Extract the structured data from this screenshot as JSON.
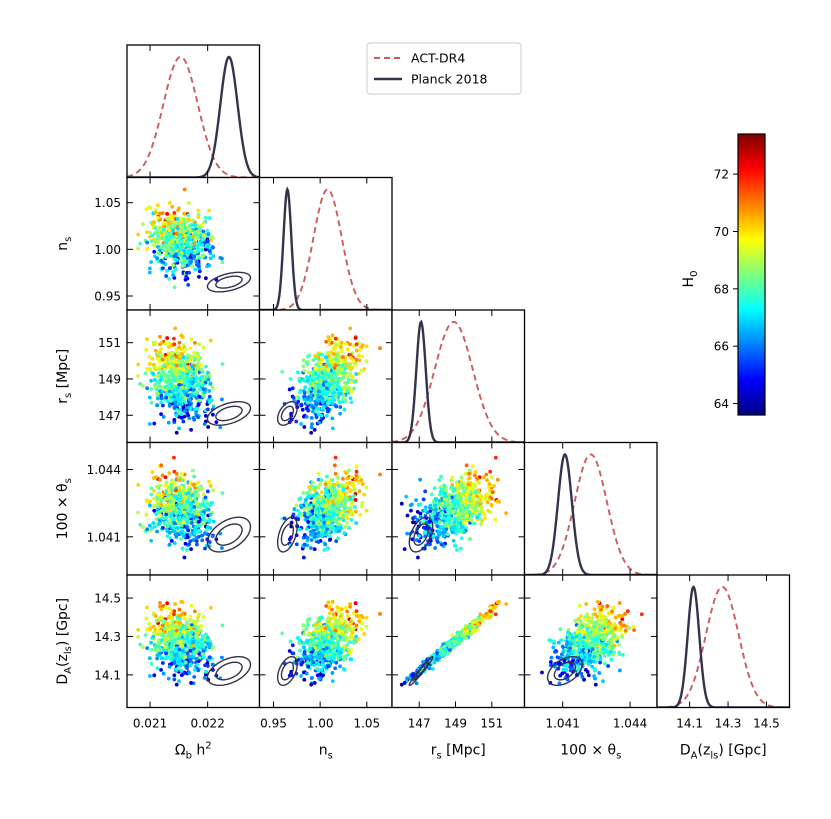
{
  "chart_data": {
    "type": "scatter",
    "title": "",
    "parameters": [
      {
        "key": "omegabh2",
        "label": "Ω_b h^2",
        "range": [
          0.0206,
          0.0229
        ],
        "ticks": [
          0.021,
          0.022
        ],
        "tick_labels": [
          "0.021",
          "0.022"
        ]
      },
      {
        "key": "ns",
        "label": "n_s",
        "range": [
          0.935,
          1.077
        ],
        "ticks": [
          0.95,
          1.0,
          1.05
        ],
        "tick_labels": [
          "0.95",
          "1.00",
          "1.05"
        ]
      },
      {
        "key": "rs",
        "label": "r_s [Mpc]",
        "range": [
          145.5,
          152.8
        ],
        "ticks": [
          147,
          149,
          151
        ],
        "tick_labels": [
          "147",
          "149",
          "151"
        ]
      },
      {
        "key": "theta",
        "label": "100 × θ_s",
        "range": [
          1.0393,
          1.0452
        ],
        "ticks": [
          1.041,
          1.044
        ],
        "tick_labels": [
          "1.041",
          "1.044"
        ]
      },
      {
        "key": "DA",
        "label": "D_A(z_ls) [Gpc]",
        "range": [
          13.93,
          14.62
        ],
        "ticks": [
          14.1,
          14.3,
          14.5
        ],
        "tick_labels": [
          "14.1",
          "14.3",
          "14.5"
        ]
      }
    ],
    "legend": {
      "placement": "top-center",
      "entries": [
        {
          "label": "ACT-DR4",
          "style": "dashed",
          "color": "#cd5c5c"
        },
        {
          "label": "Planck 2018",
          "style": "solid",
          "color": "#33334d"
        }
      ]
    },
    "colorbar": {
      "label": "H_0",
      "range": [
        63.6,
        73.4
      ],
      "ticks": [
        64,
        66,
        68,
        70,
        72
      ],
      "tick_labels": [
        "64",
        "66",
        "68",
        "70",
        "72"
      ]
    },
    "act_dr4": {
      "mean": {
        "omegabh2": 0.02153,
        "ns": 1.008,
        "rs": 148.9,
        "theta": 1.04225,
        "DA": 14.27
      },
      "sigma": {
        "omegabh2": 0.0003,
        "ns": 0.015,
        "rs": 1.05,
        "theta": 0.00072,
        "DA": 0.085
      }
    },
    "planck_2018": {
      "mean": {
        "omegabh2": 0.02237,
        "ns": 0.9649,
        "rs": 147.1,
        "theta": 1.0411,
        "DA": 14.12
      },
      "sigma": {
        "omegabh2": 0.00015,
        "ns": 0.0042,
        "rs": 0.26,
        "theta": 0.00031,
        "DA": 0.03
      }
    },
    "samples": {
      "count": 700,
      "color_by": "H_0",
      "strong_correlation": [
        "rs",
        "DA"
      ]
    }
  }
}
